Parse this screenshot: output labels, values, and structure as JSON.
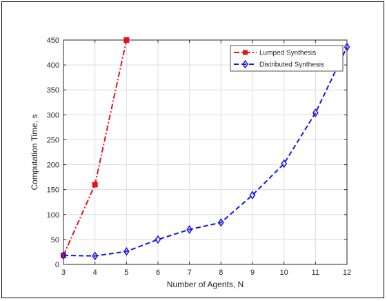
{
  "chart_data": {
    "type": "line",
    "xlabel": "Number of Agents, N",
    "ylabel": "Computation Time, s",
    "xlim": [
      3,
      12
    ],
    "ylim": [
      0,
      450
    ],
    "xticks": [
      3,
      4,
      5,
      6,
      7,
      8,
      9,
      10,
      11,
      12
    ],
    "yticks": [
      0,
      50,
      100,
      150,
      200,
      250,
      300,
      350,
      400,
      450
    ],
    "grid": true,
    "legend_position": "top-right",
    "series": [
      {
        "name": "Lumped Synthesis",
        "color": "#e8101a",
        "line_style": "dash-dot",
        "marker": "square",
        "x": [
          3,
          4,
          5
        ],
        "y": [
          18,
          160,
          450
        ]
      },
      {
        "name": "Distributed Synthesis",
        "color": "#1414e6",
        "line_style": "dashed",
        "marker": "diamond",
        "x": [
          3,
          4,
          5,
          6,
          7,
          8,
          9,
          10,
          11,
          12
        ],
        "y": [
          18,
          17,
          26,
          50,
          70,
          84,
          139,
          202,
          304,
          436
        ]
      }
    ]
  }
}
